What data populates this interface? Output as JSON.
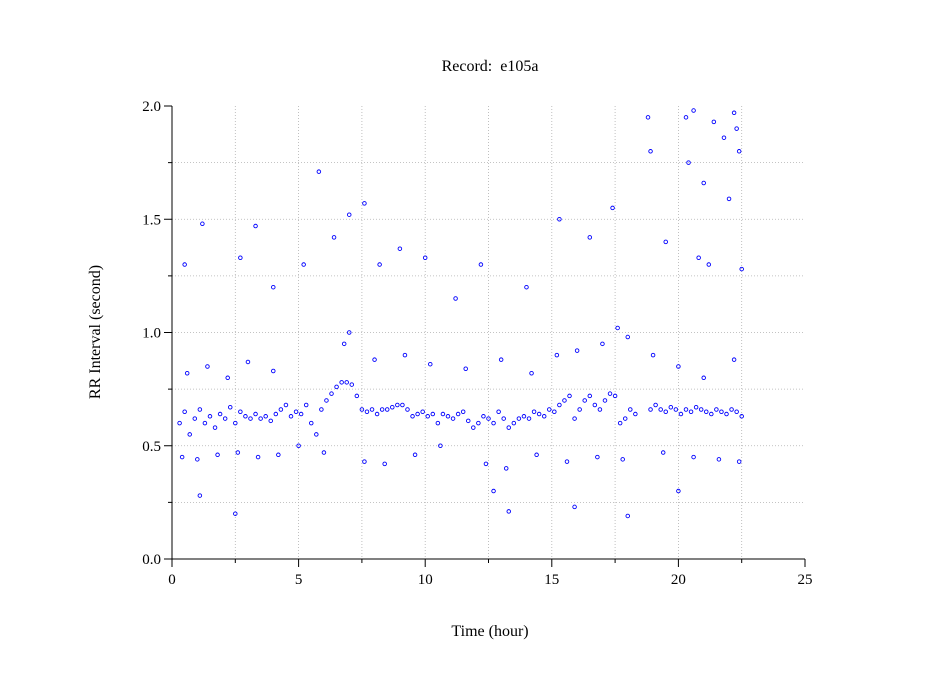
{
  "chart_data": {
    "type": "scatter",
    "title": "Record:  e105a",
    "xlabel": "Time (hour)",
    "ylabel": "RR Interval (second)",
    "xlim": [
      0,
      25
    ],
    "ylim": [
      0,
      2
    ],
    "xticks": [
      0,
      5,
      10,
      15,
      20,
      25
    ],
    "yticks": [
      {
        "value": 0,
        "label": "0.0"
      },
      {
        "value": 0.5,
        "label": "0.5"
      },
      {
        "value": 1,
        "label": "1.0"
      },
      {
        "value": 1.5,
        "label": "1.5"
      },
      {
        "value": 2,
        "label": "2.0"
      }
    ],
    "xminorticks": [
      2.5,
      7.5,
      12.5,
      17.5,
      22.5
    ],
    "yminorticks": [
      0.25,
      0.75,
      1.25,
      1.75
    ],
    "grid": true,
    "color": "#0000ff",
    "x": [
      0.3,
      0.5,
      0.7,
      0.9,
      1.1,
      1.3,
      1.5,
      1.7,
      1.9,
      2.1,
      2.3,
      2.5,
      2.7,
      2.9,
      3.1,
      3.3,
      3.5,
      3.7,
      3.9,
      4.1,
      4.3,
      4.5,
      4.7,
      4.9,
      5.1,
      5.3,
      5.5,
      5.7,
      5.9,
      6.1,
      6.3,
      6.5,
      6.7,
      6.9,
      7.1,
      7.3,
      7.5,
      7.7,
      7.9,
      8.1,
      8.3,
      8.5,
      8.7,
      8.9,
      9.1,
      9.3,
      9.5,
      9.7,
      9.9,
      10.1,
      10.3,
      10.5,
      10.7,
      10.9,
      11.1,
      11.3,
      11.5,
      11.7,
      11.9,
      12.1,
      12.3,
      12.5,
      12.7,
      12.9,
      13.1,
      13.3,
      13.5,
      13.7,
      13.9,
      14.1,
      14.3,
      14.5,
      14.7,
      14.9,
      15.1,
      15.3,
      15.5,
      15.7,
      15.9,
      16.1,
      16.3,
      16.5,
      16.7,
      16.9,
      17.1,
      17.3,
      17.5,
      17.7,
      17.9,
      18.1,
      18.3,
      18.9,
      19.1,
      19.3,
      19.5,
      19.7,
      19.9,
      20.1,
      20.3,
      20.5,
      20.7,
      20.9,
      21.1,
      21.3,
      21.5,
      21.7,
      21.9,
      22.1,
      22.3,
      22.5,
      0.4,
      1.0,
      1.8,
      2.6,
      3.4,
      4.2,
      5.0,
      6.0,
      7.6,
      8.4,
      9.6,
      10.6,
      12.4,
      13.2,
      14.4,
      15.6,
      16.8,
      17.8,
      19.4,
      20.6,
      21.6,
      22.4,
      0.6,
      1.4,
      2.2,
      3.0,
      4.0,
      6.8,
      7.0,
      8.0,
      9.2,
      10.2,
      11.6,
      13.0,
      14.2,
      15.2,
      16.0,
      17.0,
      17.6,
      18.0,
      19.0,
      20.0,
      21.0,
      22.2,
      0.5,
      1.2,
      1.1,
      2.5,
      2.7,
      3.3,
      4.0,
      5.2,
      5.8,
      6.4,
      7.0,
      7.6,
      8.2,
      9.0,
      10.0,
      11.2,
      12.2,
      13.3,
      14.0,
      15.3,
      15.9,
      16.5,
      17.4,
      18.0,
      18.8,
      18.9,
      19.5,
      20.0,
      20.4,
      20.6,
      20.8,
      21.0,
      21.4,
      21.8,
      22.0,
      22.2,
      22.3,
      22.4,
      22.5,
      21.2,
      20.3,
      12.7
    ],
    "values": [
      0.6,
      0.65,
      0.55,
      0.62,
      0.66,
      0.6,
      0.63,
      0.58,
      0.64,
      0.62,
      0.67,
      0.6,
      0.65,
      0.63,
      0.62,
      0.64,
      0.62,
      0.63,
      0.61,
      0.64,
      0.66,
      0.68,
      0.63,
      0.65,
      0.64,
      0.68,
      0.6,
      0.55,
      0.66,
      0.7,
      0.73,
      0.76,
      0.78,
      0.78,
      0.77,
      0.72,
      0.66,
      0.65,
      0.66,
      0.64,
      0.66,
      0.66,
      0.67,
      0.68,
      0.68,
      0.66,
      0.63,
      0.64,
      0.65,
      0.63,
      0.64,
      0.6,
      0.64,
      0.63,
      0.62,
      0.64,
      0.65,
      0.61,
      0.58,
      0.6,
      0.63,
      0.62,
      0.6,
      0.65,
      0.62,
      0.58,
      0.6,
      0.62,
      0.63,
      0.62,
      0.65,
      0.64,
      0.63,
      0.66,
      0.65,
      0.68,
      0.7,
      0.72,
      0.62,
      0.66,
      0.7,
      0.72,
      0.68,
      0.66,
      0.7,
      0.73,
      0.72,
      0.6,
      0.62,
      0.66,
      0.64,
      0.66,
      0.68,
      0.66,
      0.65,
      0.67,
      0.66,
      0.64,
      0.66,
      0.65,
      0.67,
      0.66,
      0.65,
      0.64,
      0.66,
      0.65,
      0.64,
      0.66,
      0.65,
      0.63,
      0.45,
      0.44,
      0.46,
      0.47,
      0.45,
      0.46,
      0.5,
      0.47,
      0.43,
      0.42,
      0.46,
      0.5,
      0.42,
      0.4,
      0.46,
      0.43,
      0.45,
      0.44,
      0.47,
      0.45,
      0.44,
      0.43,
      0.82,
      0.85,
      0.8,
      0.87,
      0.83,
      0.95,
      1.0,
      0.88,
      0.9,
      0.86,
      0.84,
      0.88,
      0.82,
      0.9,
      0.92,
      0.95,
      1.02,
      0.98,
      0.9,
      0.85,
      0.8,
      0.88,
      1.3,
      1.48,
      0.28,
      0.2,
      1.33,
      1.47,
      1.2,
      1.3,
      1.71,
      1.42,
      1.52,
      1.57,
      1.3,
      1.37,
      1.33,
      1.15,
      1.3,
      0.21,
      1.2,
      1.5,
      0.23,
      1.42,
      1.55,
      0.19,
      1.95,
      1.8,
      1.4,
      0.3,
      1.75,
      1.98,
      1.33,
      1.66,
      1.93,
      1.86,
      1.59,
      1.97,
      1.9,
      1.8,
      1.28,
      1.3,
      1.95,
      0.3
    ]
  }
}
